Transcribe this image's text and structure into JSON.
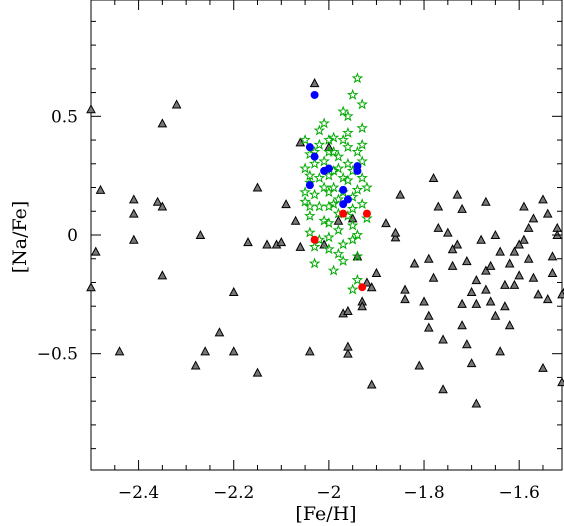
{
  "chart_data": {
    "type": "scatter",
    "title": "",
    "xlabel": "[Fe/H]",
    "ylabel": "[Na/Fe]",
    "xlim": [
      -2.5,
      -1.51
    ],
    "ylim": [
      -0.99,
      0.99
    ],
    "xticks": [
      -2.4,
      -2.2,
      -2.0,
      -1.8,
      -1.6
    ],
    "xtick_labels": [
      "−2.4",
      "−2.2",
      "−2",
      "−1.8",
      "−1.6"
    ],
    "yticks": [
      -0.5,
      0.0,
      0.5
    ],
    "ytick_labels": [
      "−0.5",
      "0",
      "0.5"
    ],
    "grid": false,
    "legend": false,
    "series": [
      {
        "marker": "triangle",
        "color": "#777777",
        "edge": "#000000",
        "points": [
          [
            -2.5,
            0.53
          ],
          [
            -2.49,
            -0.07
          ],
          [
            -2.5,
            -0.22
          ],
          [
            -2.48,
            0.19
          ],
          [
            -2.44,
            -0.49
          ],
          [
            -2.41,
            0.15
          ],
          [
            -2.41,
            0.09
          ],
          [
            -2.41,
            -0.02
          ],
          [
            -2.36,
            0.14
          ],
          [
            -2.35,
            0.12
          ],
          [
            -2.35,
            0.47
          ],
          [
            -2.35,
            -0.17
          ],
          [
            -2.32,
            0.55
          ],
          [
            -2.27,
            0.0
          ],
          [
            -2.28,
            -0.55
          ],
          [
            -2.26,
            -0.49
          ],
          [
            -2.23,
            -0.41
          ],
          [
            -2.2,
            -0.24
          ],
          [
            -2.2,
            -0.49
          ],
          [
            -2.17,
            -0.03
          ],
          [
            -2.15,
            -0.58
          ],
          [
            -2.15,
            0.2
          ],
          [
            -2.13,
            -0.04
          ],
          [
            -2.11,
            -0.04
          ],
          [
            -2.1,
            -0.03
          ],
          [
            -2.09,
            0.13
          ],
          [
            -2.07,
            0.06
          ],
          [
            -2.06,
            -0.05
          ],
          [
            -2.06,
            0.39
          ],
          [
            -2.04,
            -0.49
          ],
          [
            -2.03,
            0.64
          ],
          [
            -2.01,
            -0.04
          ],
          [
            -2.0,
            0.37
          ],
          [
            -1.98,
            0.06
          ],
          [
            -1.97,
            -0.33
          ],
          [
            -1.96,
            -0.32
          ],
          [
            -1.95,
            0.07
          ],
          [
            -1.96,
            -0.5
          ],
          [
            -1.96,
            -0.47
          ],
          [
            -1.94,
            -0.09
          ],
          [
            -1.93,
            -0.28
          ],
          [
            -1.93,
            -0.3
          ],
          [
            -1.92,
            -0.2
          ],
          [
            -1.91,
            -0.63
          ],
          [
            -1.91,
            -0.22
          ],
          [
            -1.9,
            -0.16
          ],
          [
            -1.86,
            -0.01
          ],
          [
            -1.85,
            0.17
          ],
          [
            -1.84,
            -0.27
          ],
          [
            -1.81,
            -0.55
          ],
          [
            -1.79,
            -0.34
          ],
          [
            -1.79,
            -0.39
          ],
          [
            -1.79,
            -0.1
          ],
          [
            -1.78,
            0.24
          ],
          [
            -1.77,
            0.12
          ],
          [
            -1.78,
            -0.18
          ],
          [
            -1.77,
            0.03
          ],
          [
            -1.76,
            -0.44
          ],
          [
            -1.75,
            0.01
          ],
          [
            -1.74,
            -0.13
          ],
          [
            -1.73,
            0.17
          ],
          [
            -1.73,
            -0.04
          ],
          [
            -1.72,
            0.11
          ],
          [
            -1.72,
            -0.29
          ],
          [
            -1.72,
            -0.38
          ],
          [
            -1.71,
            -0.46
          ],
          [
            -1.7,
            -0.24
          ],
          [
            -1.7,
            -0.54
          ],
          [
            -1.69,
            -0.19
          ],
          [
            -1.67,
            -0.15
          ],
          [
            -1.67,
            0.14
          ],
          [
            -1.66,
            -0.28
          ],
          [
            -1.65,
            -0.34
          ],
          [
            -1.65,
            0.0
          ],
          [
            -1.64,
            -0.49
          ],
          [
            -1.63,
            -0.3
          ],
          [
            -1.62,
            -0.38
          ],
          [
            -1.62,
            -0.12
          ],
          [
            -1.61,
            -0.21
          ],
          [
            -1.6,
            -0.17
          ],
          [
            -1.59,
            0.12
          ],
          [
            -1.58,
            -0.1
          ],
          [
            -1.57,
            -0.18
          ],
          [
            -1.55,
            0.15
          ],
          [
            -1.55,
            -0.56
          ],
          [
            -1.54,
            -0.27
          ],
          [
            -1.53,
            -0.09
          ],
          [
            -1.52,
            0.03
          ],
          [
            -1.51,
            -0.25
          ],
          [
            -1.51,
            -0.62
          ],
          [
            -1.5,
            -0.22
          ],
          [
            -1.88,
            0.05
          ],
          [
            -1.86,
            0.01
          ],
          [
            -1.84,
            -0.23
          ],
          [
            -1.82,
            -0.12
          ],
          [
            -1.8,
            -0.28
          ],
          [
            -1.76,
            -0.65
          ],
          [
            -1.74,
            -0.06
          ],
          [
            -1.71,
            -0.11
          ],
          [
            -1.69,
            -0.29
          ],
          [
            -1.68,
            -0.02
          ],
          [
            -1.66,
            -0.13
          ],
          [
            -1.64,
            -0.07
          ],
          [
            -1.63,
            -0.21
          ],
          [
            -1.61,
            -0.07
          ],
          [
            -1.59,
            -0.02
          ],
          [
            -1.57,
            0.07
          ],
          [
            -1.56,
            -0.25
          ],
          [
            -1.54,
            0.09
          ],
          [
            -1.53,
            -0.16
          ],
          [
            -1.52,
            0.0
          ],
          [
            -1.69,
            -0.71
          ],
          [
            -1.67,
            -0.23
          ],
          [
            -1.6,
            -0.04
          ],
          [
            -1.58,
            0.03
          ]
        ]
      },
      {
        "marker": "star",
        "color": "#00aa00",
        "points": [
          [
            -2.05,
            0.4
          ],
          [
            -2.04,
            0.34
          ],
          [
            -2.05,
            0.28
          ],
          [
            -2.03,
            0.3
          ],
          [
            -2.04,
            0.22
          ],
          [
            -2.05,
            0.14
          ],
          [
            -2.04,
            0.08
          ],
          [
            -2.03,
            0.17
          ],
          [
            -2.04,
            0.01
          ],
          [
            -2.03,
            -0.05
          ],
          [
            -2.03,
            -0.12
          ],
          [
            -2.02,
            0.44
          ],
          [
            -2.02,
            0.38
          ],
          [
            -2.01,
            0.47
          ],
          [
            -2.01,
            0.31
          ],
          [
            -2.0,
            0.25
          ],
          [
            -2.0,
            0.18
          ],
          [
            -2.0,
            0.12
          ],
          [
            -2.01,
            0.06
          ],
          [
            -2.0,
            -0.01
          ],
          [
            -2.0,
            -0.06
          ],
          [
            -1.99,
            0.41
          ],
          [
            -1.99,
            0.35
          ],
          [
            -1.98,
            0.28
          ],
          [
            -1.99,
            0.2
          ],
          [
            -1.98,
            0.15
          ],
          [
            -1.98,
            0.09
          ],
          [
            -1.98,
            0.02
          ],
          [
            -1.97,
            -0.04
          ],
          [
            -1.97,
            -0.11
          ],
          [
            -1.96,
            0.5
          ],
          [
            -1.96,
            0.43
          ],
          [
            -1.96,
            0.37
          ],
          [
            -1.96,
            0.3
          ],
          [
            -1.96,
            0.23
          ],
          [
            -1.95,
            0.16
          ],
          [
            -1.95,
            0.11
          ],
          [
            -1.95,
            0.04
          ],
          [
            -1.95,
            -0.02
          ],
          [
            -1.94,
            -0.09
          ],
          [
            -1.94,
            -0.19
          ],
          [
            -1.95,
            0.59
          ],
          [
            -1.94,
            0.66
          ],
          [
            -1.93,
            0.55
          ],
          [
            -1.93,
            0.45
          ],
          [
            -1.93,
            0.38
          ],
          [
            -1.93,
            0.31
          ],
          [
            -1.93,
            0.24
          ],
          [
            -1.93,
            0.13
          ],
          [
            -1.92,
            0.2
          ],
          [
            -1.92,
            0.07
          ],
          [
            -2.05,
            0.18
          ],
          [
            -2.04,
            0.25
          ],
          [
            -2.03,
            0.35
          ],
          [
            -2.02,
            0.24
          ],
          [
            -2.02,
            0.12
          ],
          [
            -2.01,
            0.2
          ],
          [
            -2.0,
            0.35
          ],
          [
            -2.0,
            0.05
          ],
          [
            -1.99,
            0.13
          ],
          [
            -1.99,
            -0.15
          ],
          [
            -1.98,
            0.33
          ],
          [
            -1.97,
            0.24
          ],
          [
            -1.97,
            0.4
          ],
          [
            -1.97,
            0.18
          ],
          [
            -1.96,
            0.08
          ],
          [
            -1.95,
            0.27
          ],
          [
            -1.94,
            0.35
          ],
          [
            -1.94,
            0.19
          ],
          [
            -1.94,
            0.0
          ],
          [
            -1.95,
            -0.23
          ],
          [
            -2.02,
            -0.02
          ],
          [
            -2.0,
            0.4
          ],
          [
            -1.99,
            0.27
          ],
          [
            -1.98,
            -0.08
          ],
          [
            -1.97,
            0.52
          ],
          [
            -2.04,
            0.12
          ]
        ]
      },
      {
        "marker": "circle",
        "color": "#0000ff",
        "points": [
          [
            -2.03,
            0.59
          ],
          [
            -2.04,
            0.37
          ],
          [
            -2.03,
            0.33
          ],
          [
            -2.01,
            0.27
          ],
          [
            -2.0,
            0.28
          ],
          [
            -2.04,
            0.21
          ],
          [
            -1.97,
            0.19
          ],
          [
            -1.94,
            0.29
          ],
          [
            -1.94,
            0.27
          ],
          [
            -1.96,
            0.15
          ],
          [
            -1.97,
            0.13
          ]
        ]
      },
      {
        "marker": "circle",
        "color": "#ff0000",
        "points": [
          [
            -1.97,
            0.09
          ],
          [
            -1.92,
            0.09
          ],
          [
            -2.03,
            -0.02
          ],
          [
            -1.93,
            -0.22
          ]
        ]
      }
    ]
  }
}
